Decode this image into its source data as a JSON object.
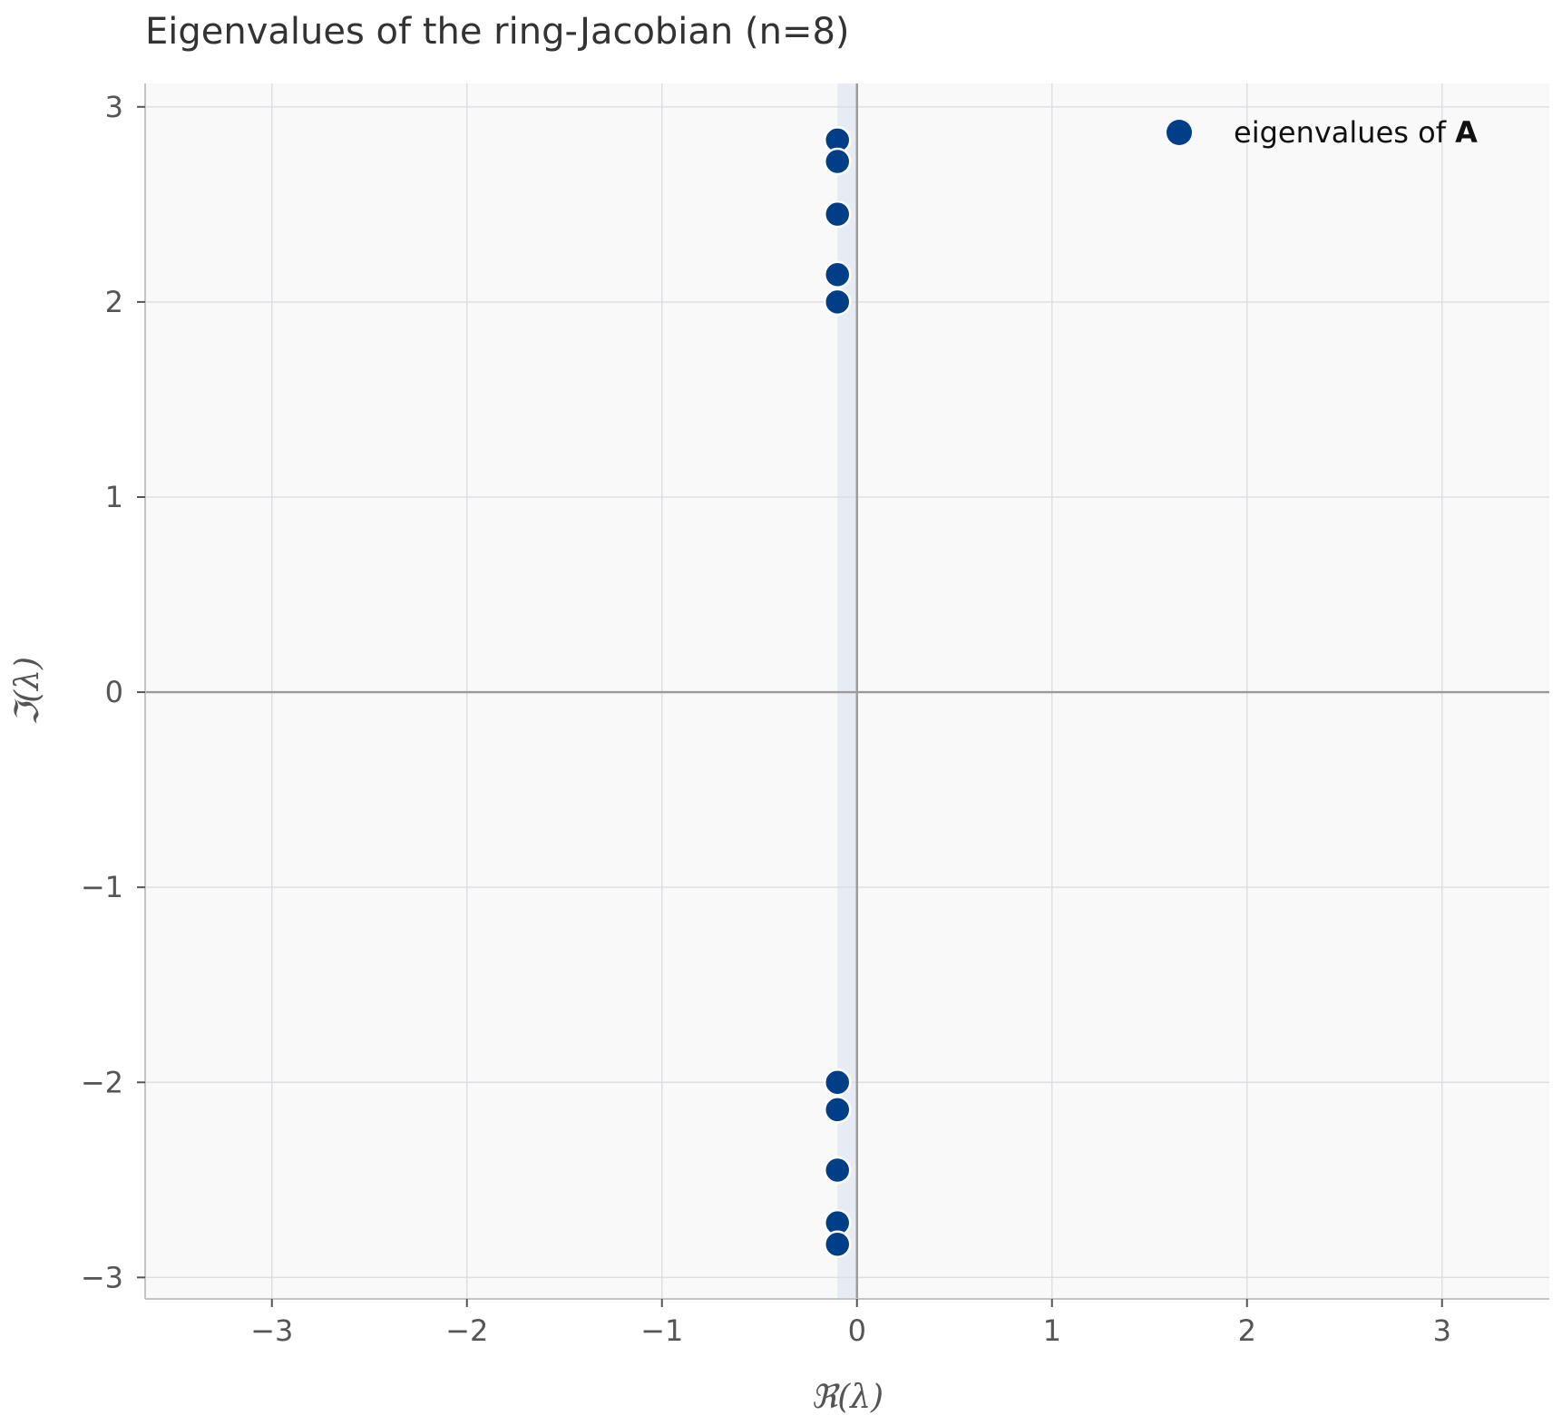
{
  "chart_data": {
    "type": "scatter",
    "title": "Eigenvalues of the ring-Jacobian (n=8)",
    "xlabel": "ℜ(λ)",
    "ylabel": "ℑ(λ)",
    "xlim": [
      -3.65,
      3.55
    ],
    "ylim": [
      -3.11,
      3.12
    ],
    "x_ticks": [
      -3,
      -2,
      -1,
      0,
      1,
      2,
      3
    ],
    "y_ticks": [
      -3,
      -2,
      -1,
      0,
      1,
      2,
      3
    ],
    "x_tick_labels": [
      "−3",
      "−2",
      "−1",
      "0",
      "1",
      "2",
      "3"
    ],
    "y_tick_labels": [
      "−3",
      "−2",
      "−1",
      "0",
      "1",
      "2",
      "3"
    ],
    "grid": true,
    "legend_position": "top-right",
    "shaded_band": {
      "x_from": -0.1,
      "x_to": 0,
      "color": "#e4eaf2"
    },
    "series": [
      {
        "name": "eigenvalues of A",
        "legend_text": "eigenvalues of ",
        "legend_bold": "A",
        "color": "#003f88",
        "x": [
          -0.1,
          -0.1,
          -0.1,
          -0.1,
          -0.1,
          -0.1,
          -0.1,
          -0.1,
          -0.1,
          -0.1
        ],
        "y": [
          2.83,
          2.72,
          2.45,
          2.14,
          2.0,
          -2.0,
          -2.14,
          -2.45,
          -2.72,
          -2.83
        ]
      }
    ],
    "colors": {
      "plot_background": "#f9f9fa",
      "grid": "#dddde2",
      "zero_line": "#9a9a9a",
      "spine": "#c4c4c4"
    }
  }
}
